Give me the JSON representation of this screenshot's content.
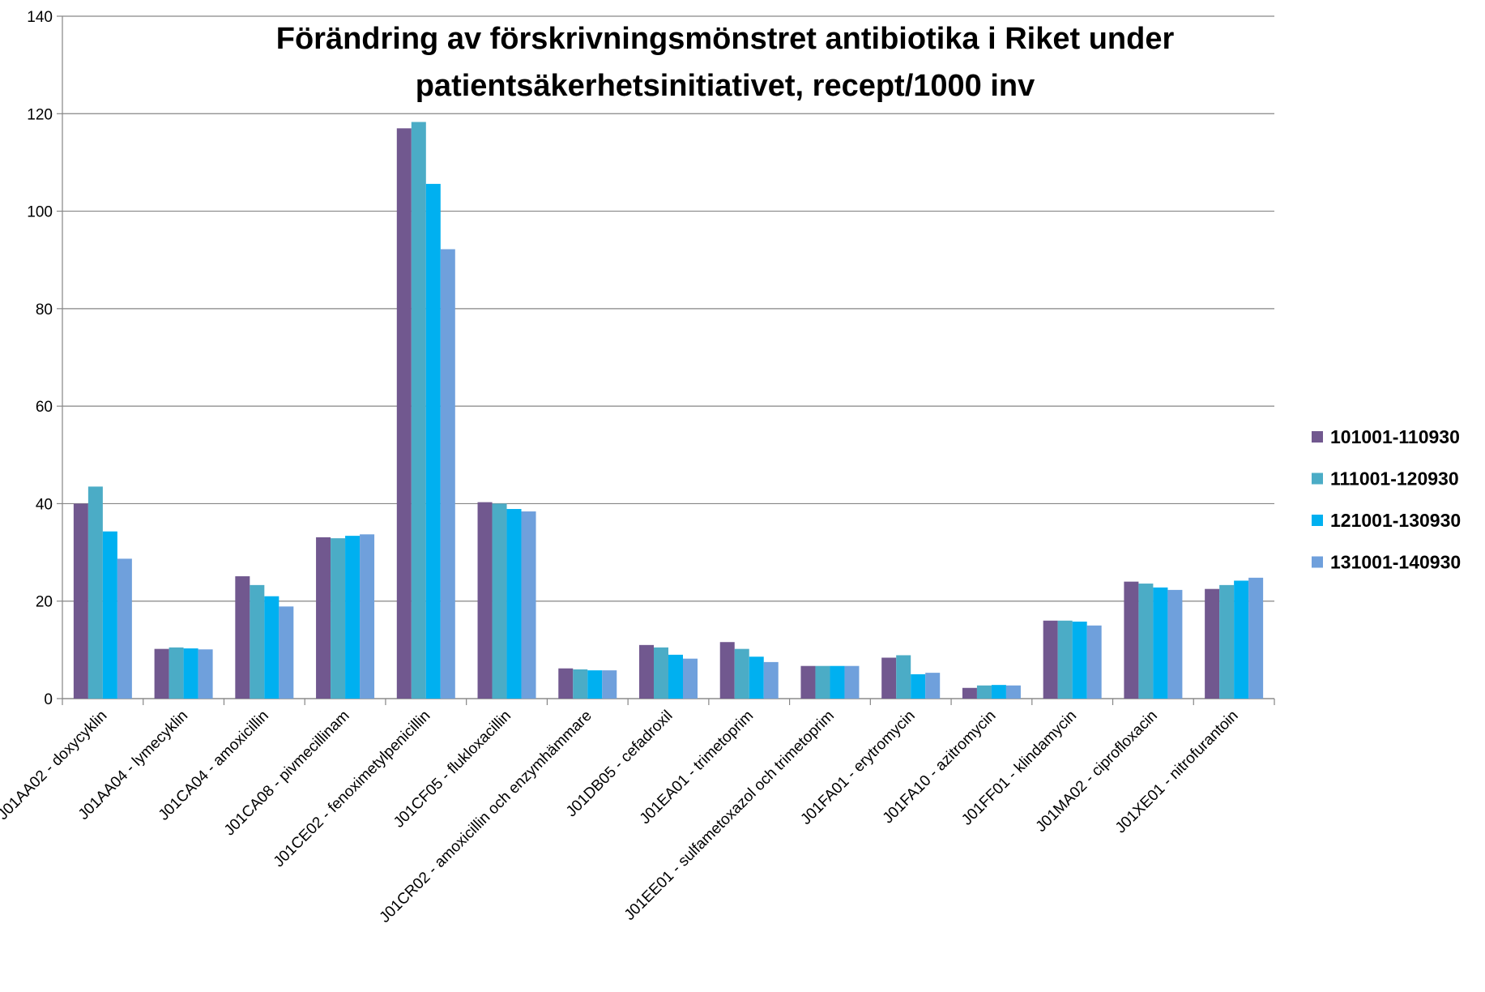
{
  "chart_data": {
    "type": "bar",
    "title": [
      "Förändring av förskrivningsmönstret antibiotika i Riket under",
      "patientsäkerhetsinitiativet, recept/1000 inv"
    ],
    "categories": [
      "J01AA02 - doxycyklin",
      "J01AA04 - lymecyklin",
      "J01CA04 - amoxicillin",
      "J01CA08 - pivmecillinam",
      "J01CE02 - fenoximetylpenicillin",
      "J01CF05 - flukloxacillin",
      "J01CR02 - amoxicillin och enzymhämmare",
      "J01DB05 - cefadroxil",
      "J01EA01 - trimetoprim",
      "J01EE01 - sulfametoxazol och trimetoprim",
      "J01FA01 - erytromycin",
      "J01FA10 - azitromycin",
      "J01FF01 - klindamycin",
      "J01MA02 - ciprofloxacin",
      "J01XE01 - nitrofurantoin"
    ],
    "series": [
      {
        "name": "101001-110930",
        "color": "#71588f",
        "values": [
          40,
          10.2,
          25.1,
          33.1,
          117,
          40.3,
          6.2,
          11,
          11.6,
          6.7,
          8.4,
          2.2,
          16,
          24,
          22.5
        ]
      },
      {
        "name": "111001-120930",
        "color": "#4bacc6",
        "values": [
          43.5,
          10.5,
          23.3,
          32.9,
          118.3,
          40,
          6,
          10.5,
          10.2,
          6.7,
          8.9,
          2.7,
          16,
          23.6,
          23.3
        ]
      },
      {
        "name": "121001-130930",
        "color": "#00b0f0",
        "values": [
          34.3,
          10.3,
          21,
          33.4,
          105.6,
          38.9,
          5.8,
          9,
          8.6,
          6.7,
          5,
          2.8,
          15.8,
          22.8,
          24.2
        ]
      },
      {
        "name": "131001-140930",
        "color": "#6fa0dc",
        "values": [
          28.7,
          10.1,
          18.9,
          33.7,
          92.2,
          38.4,
          5.8,
          8.2,
          7.5,
          6.7,
          5.3,
          2.7,
          15,
          22.3,
          24.8
        ]
      }
    ],
    "ylim": [
      0,
      140
    ],
    "yticks": [
      0,
      20,
      40,
      60,
      80,
      100,
      120,
      140
    ],
    "grid": true,
    "legend": "right"
  }
}
